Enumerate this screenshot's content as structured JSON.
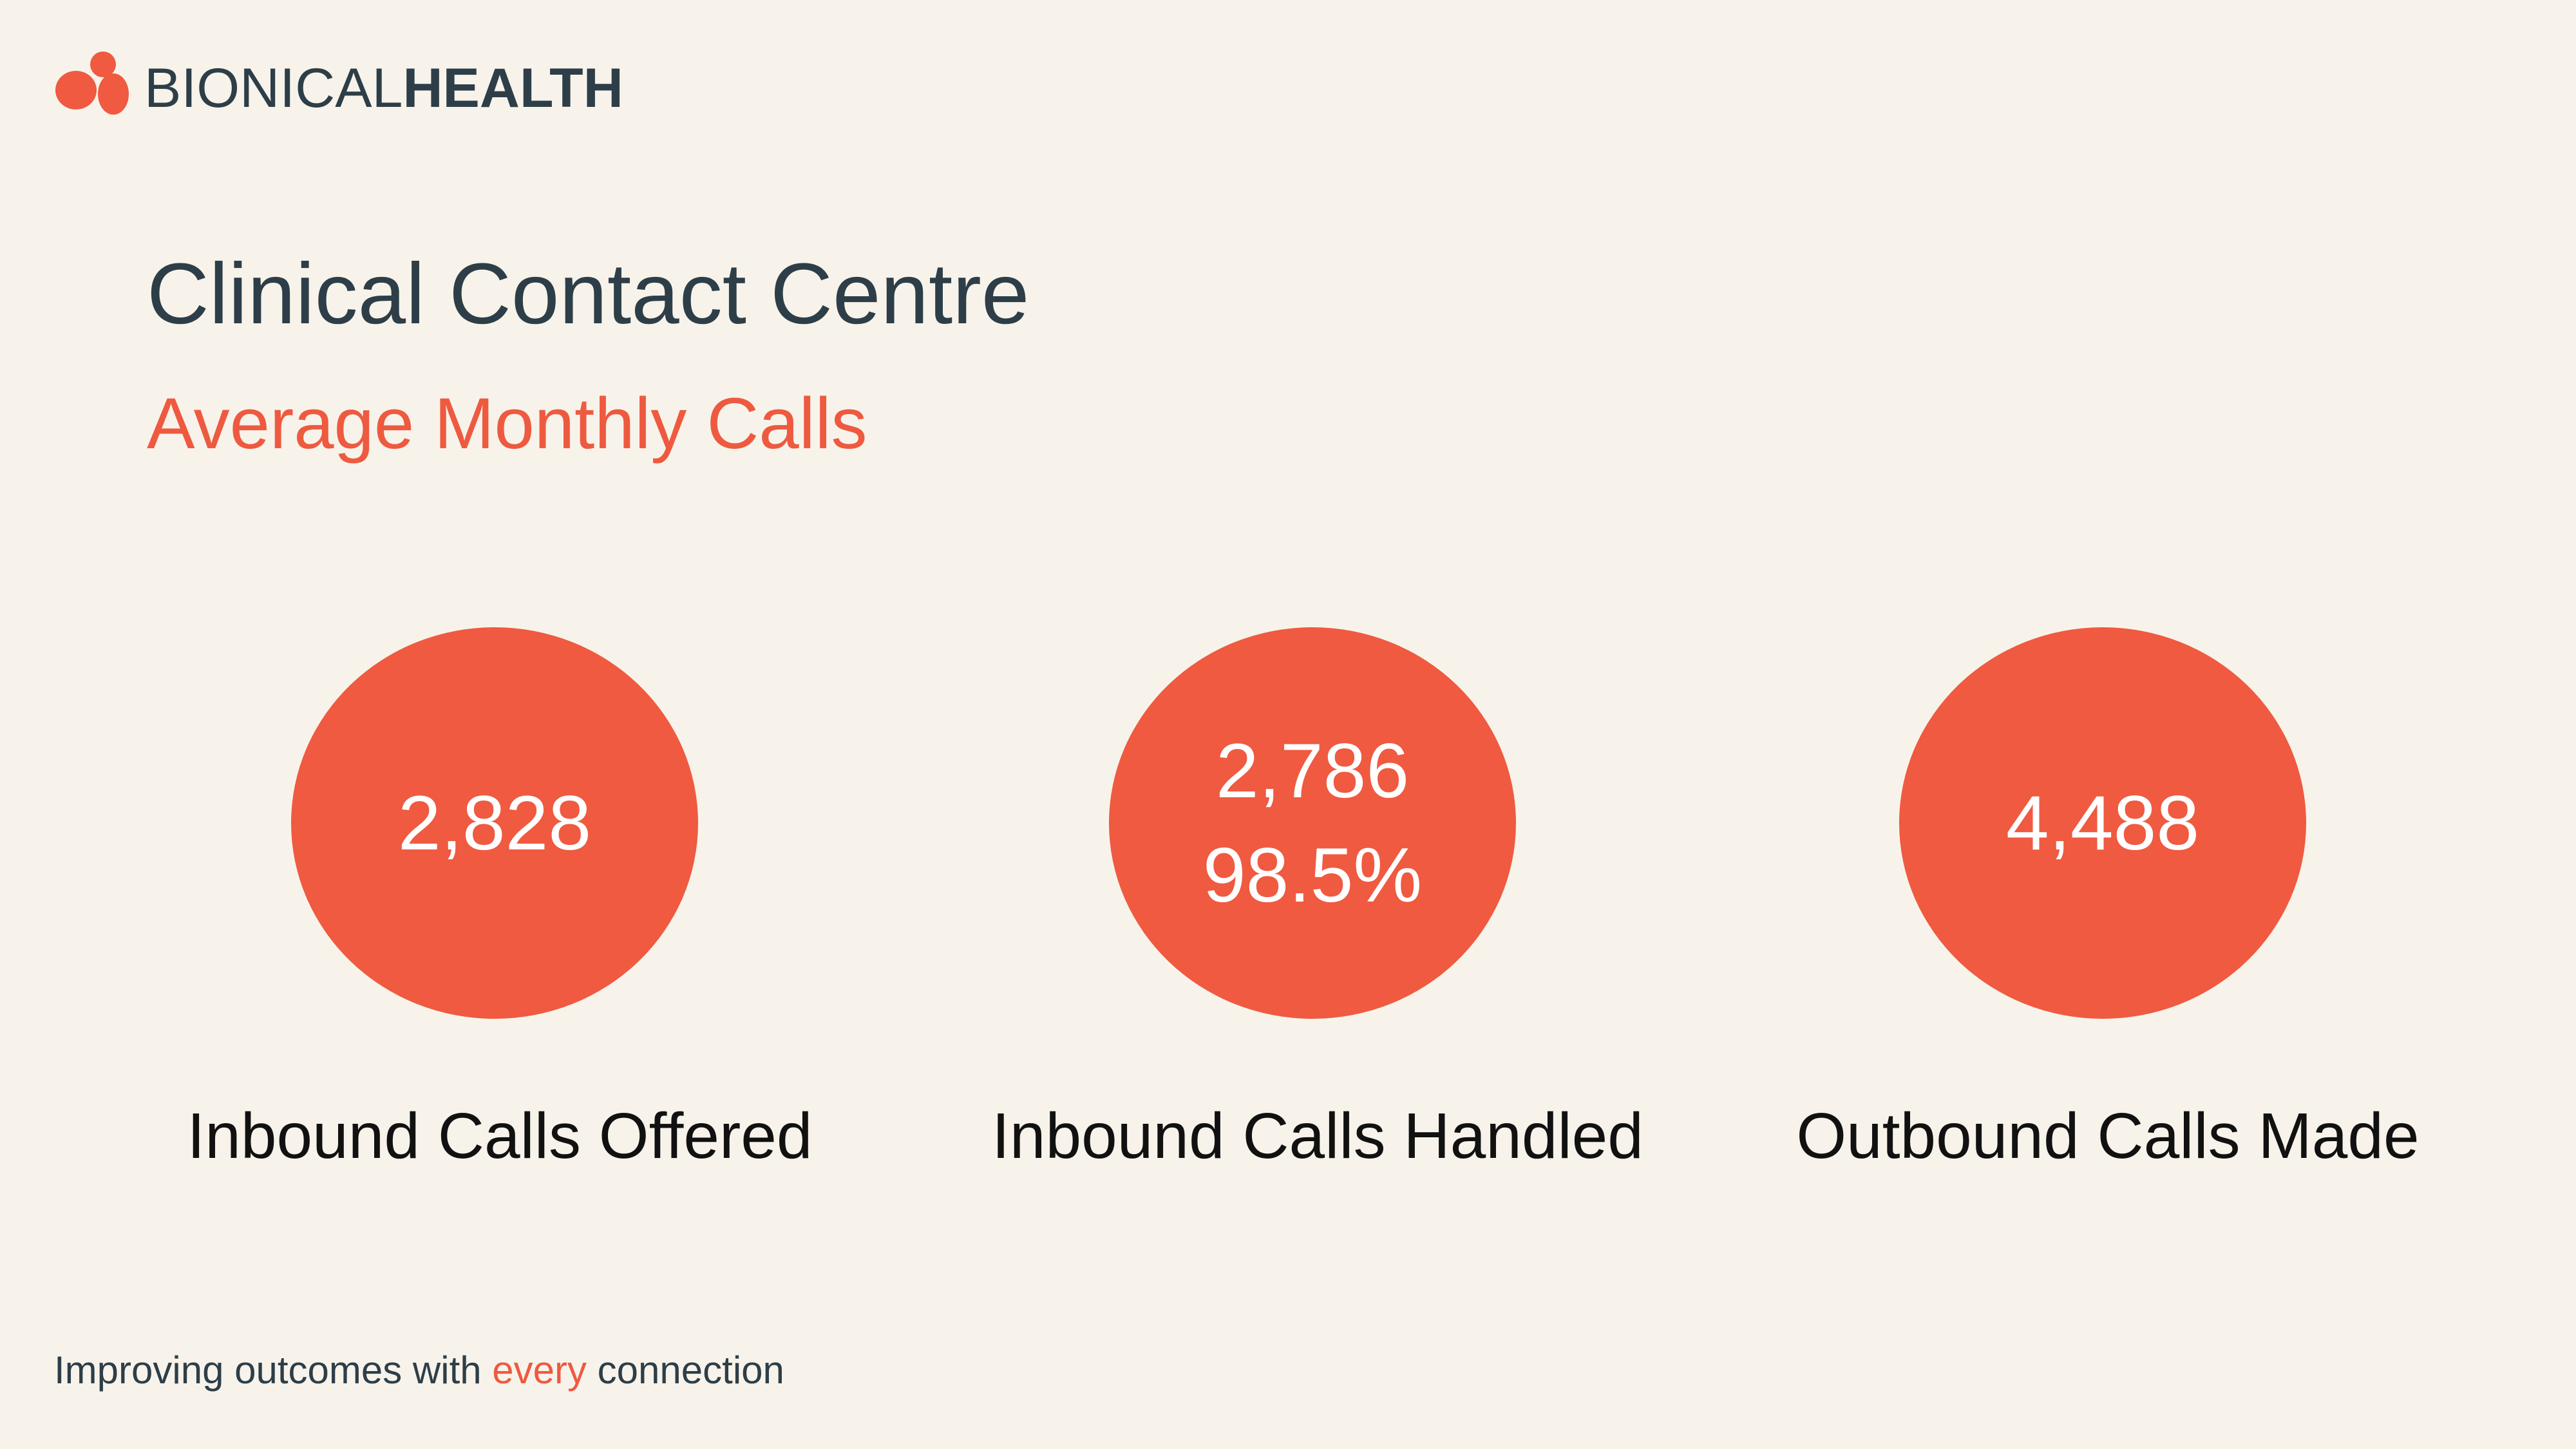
{
  "header": {
    "logo": {
      "brand_light": "BIONICAL",
      "brand_bold": "HEALTH"
    }
  },
  "title": "Clinical Contact Centre",
  "subtitle": "Average Monthly Calls",
  "stats": [
    {
      "values": [
        "2,828"
      ],
      "label": "Inbound Calls Offered"
    },
    {
      "values": [
        "2,786",
        "98.5%"
      ],
      "label": "Inbound Calls Handled"
    },
    {
      "values": [
        "4,488"
      ],
      "label": "Outbound Calls Made"
    }
  ],
  "footer": {
    "parts": [
      "Improving outcomes with ",
      "every",
      " connection"
    ]
  }
}
